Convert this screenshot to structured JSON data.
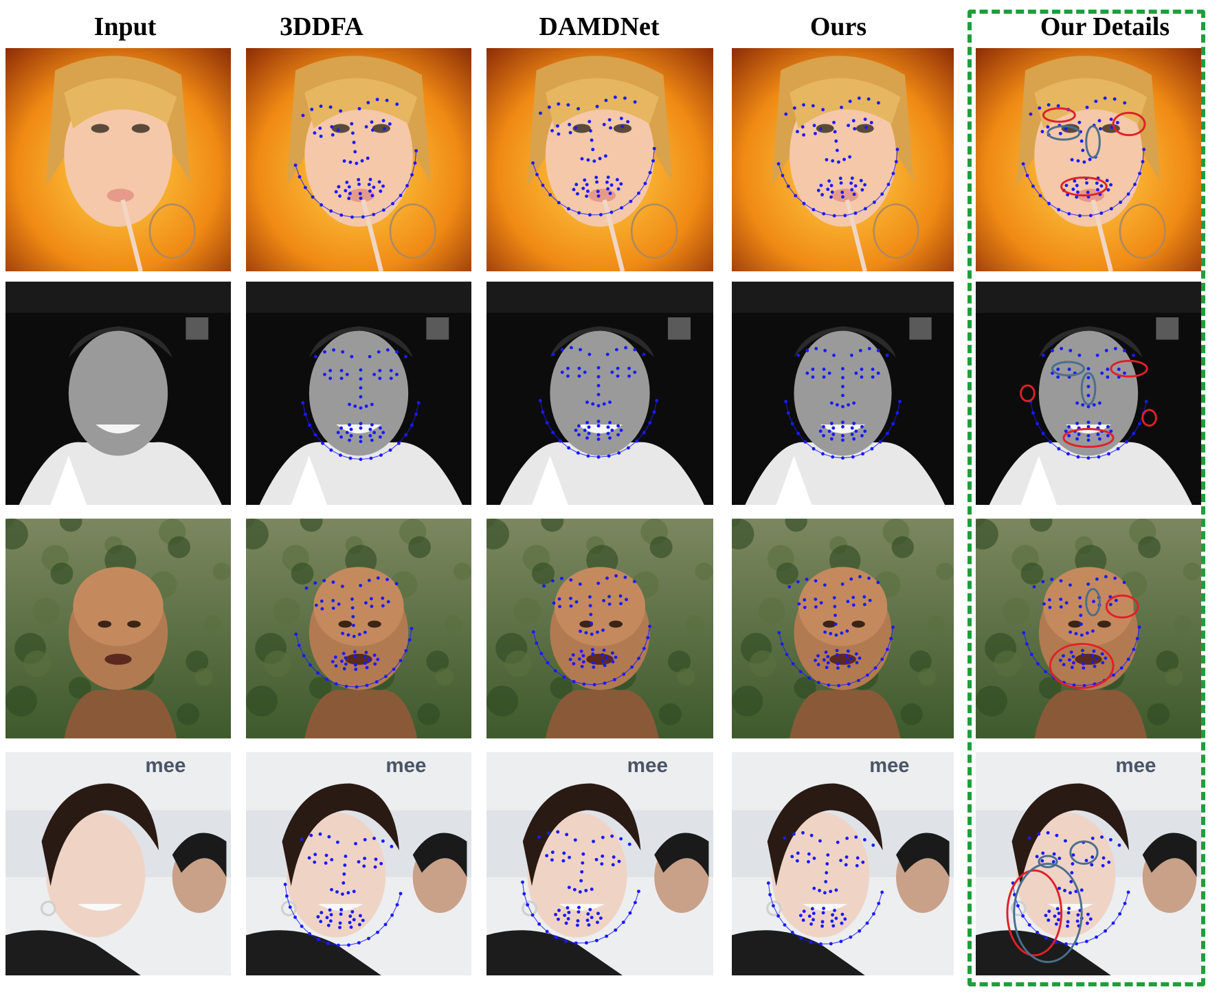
{
  "columns": [
    {
      "key": "input",
      "title": "Input"
    },
    {
      "key": "3ddfa",
      "title": "3DDFA"
    },
    {
      "key": "damdnet",
      "title": "DAMDNet"
    },
    {
      "key": "ours",
      "title": "Ours"
    },
    {
      "key": "details",
      "title": "Our Details"
    }
  ],
  "rows": [
    {
      "key": "row1",
      "scene": "woman with blonde hair against orange background, looking up, holding straw"
    },
    {
      "key": "row2",
      "scene": "smiling young man, grayscale, black background, white tank top"
    },
    {
      "key": "row3",
      "scene": "bald man looking up, green foliage background"
    },
    {
      "key": "row4",
      "scene": "woman with dark hair and earrings in front of a banner, second man at right"
    }
  ],
  "banner_text": "mee",
  "colors": {
    "landmark": "#1a1aff",
    "highlight_red": "#e0202a",
    "highlight_steel": "#4a6e8e",
    "details_frame": "#1e9e3c"
  }
}
